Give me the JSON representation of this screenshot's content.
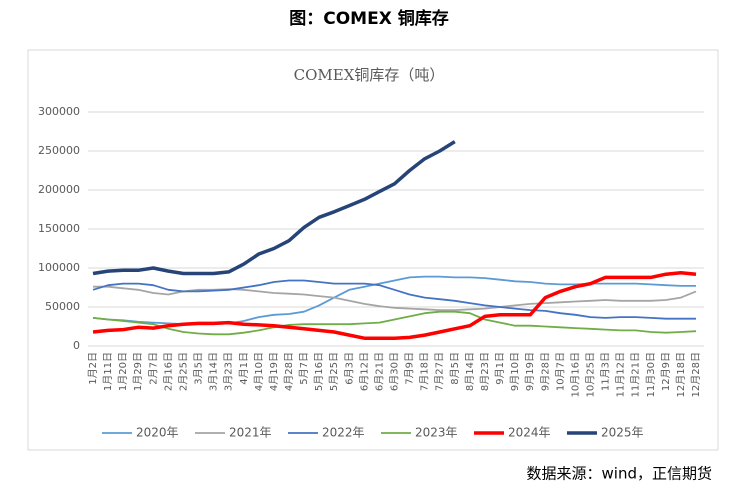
{
  "heading": "图：COMEX 铜库存",
  "source": "数据来源：wind，正信期货",
  "chart_data": {
    "type": "line",
    "title": "COMEX铜库存（吨）",
    "categories": [
      "1月2日",
      "1月11日",
      "1月20日",
      "1月29日",
      "2月7日",
      "2月16日",
      "2月25日",
      "3月5日",
      "3月14日",
      "3月23日",
      "4月1日",
      "4月10日",
      "4月19日",
      "4月28日",
      "5月7日",
      "5月16日",
      "5月25日",
      "6月3日",
      "6月12日",
      "6月21日",
      "6月30日",
      "7月9日",
      "7月18日",
      "7月27日",
      "8月5日",
      "8月14日",
      "8月23日",
      "9月1日",
      "9月10日",
      "9月19日",
      "9月28日",
      "10月7日",
      "10月16日",
      "10月25日",
      "11月3日",
      "11月12日",
      "11月21日",
      "11月30日",
      "12月9日",
      "12月18日",
      "12月28日"
    ],
    "ylim": [
      0,
      300000
    ],
    "yticks": [
      0,
      50000,
      100000,
      150000,
      200000,
      250000,
      300000
    ],
    "grid": true,
    "legend": "bottom",
    "series": [
      {
        "name": "2020年",
        "color": "#5b9bd5",
        "width": 1.8,
        "values": [
          36000,
          34000,
          33000,
          31000,
          30000,
          29000,
          28000,
          28000,
          28000,
          29000,
          32000,
          37000,
          40000,
          41000,
          44000,
          52000,
          62000,
          72000,
          76000,
          80000,
          84000,
          88000,
          89000,
          89000,
          88000,
          88000,
          87000,
          85000,
          83000,
          82000,
          80000,
          79000,
          79000,
          80000,
          80000,
          80000,
          80000,
          79000,
          78000,
          77000,
          77000
        ]
      },
      {
        "name": "2021年",
        "color": "#a5a5a5",
        "width": 1.8,
        "values": [
          76000,
          76000,
          74000,
          72000,
          68000,
          66000,
          70000,
          72000,
          72000,
          73000,
          72000,
          70000,
          68000,
          67000,
          66000,
          64000,
          62000,
          58000,
          54000,
          51000,
          49000,
          48000,
          47000,
          46000,
          46000,
          47000,
          48000,
          50000,
          52000,
          54000,
          55000,
          56000,
          57000,
          58000,
          59000,
          58000,
          58000,
          58000,
          59000,
          62000,
          70000
        ]
      },
      {
        "name": "2022年",
        "color": "#4472c4",
        "width": 1.8,
        "values": [
          72000,
          78000,
          80000,
          80000,
          78000,
          72000,
          70000,
          70000,
          71000,
          72000,
          75000,
          78000,
          82000,
          84000,
          84000,
          82000,
          80000,
          80000,
          80000,
          78000,
          72000,
          66000,
          62000,
          60000,
          58000,
          55000,
          52000,
          50000,
          48000,
          46000,
          45000,
          42000,
          40000,
          37000,
          36000,
          37000,
          37000,
          36000,
          35000,
          35000,
          35000
        ]
      },
      {
        "name": "2023年",
        "color": "#70ad47",
        "width": 1.8,
        "values": [
          36000,
          34000,
          32000,
          30000,
          28000,
          22000,
          18000,
          16000,
          15000,
          15000,
          17000,
          20000,
          24000,
          27000,
          28000,
          28000,
          28000,
          28000,
          29000,
          30000,
          34000,
          38000,
          42000,
          44000,
          44000,
          42000,
          34000,
          30000,
          26000,
          26000,
          25000,
          24000,
          23000,
          22000,
          21000,
          20000,
          20000,
          18000,
          17000,
          18000,
          19000
        ]
      },
      {
        "name": "2024年",
        "color": "#ff0000",
        "width": 3.5,
        "values": [
          18000,
          20000,
          21000,
          24000,
          23000,
          26000,
          28000,
          29000,
          29000,
          30000,
          28000,
          27000,
          26000,
          24000,
          22000,
          20000,
          18000,
          14000,
          10000,
          10000,
          10000,
          11000,
          14000,
          18000,
          22000,
          26000,
          38000,
          40000,
          40000,
          40000,
          62000,
          70000,
          76000,
          80000,
          88000,
          88000,
          88000,
          88000,
          92000,
          94000,
          92000
        ]
      },
      {
        "name": "2025年",
        "color": "#264478",
        "width": 3.5,
        "values": [
          93000,
          96000,
          97000,
          97000,
          100000,
          96000,
          93000,
          93000,
          93000,
          95000,
          105000,
          118000,
          125000,
          135000,
          152000,
          165000,
          172000,
          180000,
          188000,
          198000,
          208000,
          225000,
          240000,
          250000,
          262000,
          null,
          null,
          null,
          null,
          null,
          null,
          null,
          null,
          null,
          null,
          null,
          null,
          null,
          null,
          null,
          null
        ]
      }
    ]
  }
}
